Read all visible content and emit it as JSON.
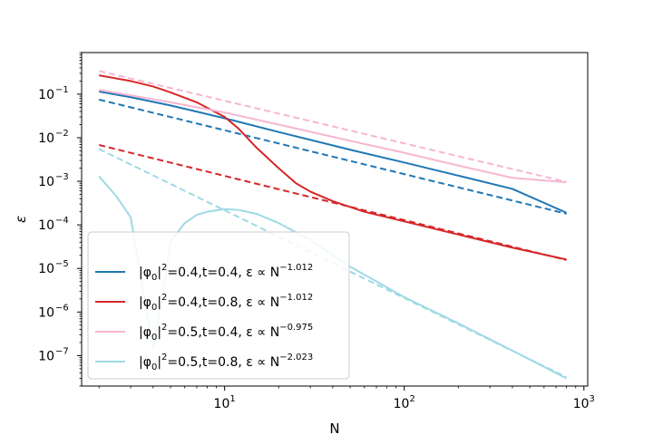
{
  "chart_data": {
    "type": "line",
    "title": "",
    "xlabel": "N",
    "ylabel": "ε",
    "xscale": "log",
    "yscale": "log",
    "xlim": [
      1.6,
      1050
    ],
    "ylim": [
      2e-08,
      0.9
    ],
    "grid": false,
    "legend_position": "lower-left",
    "x_ticks": [
      {
        "value": 10,
        "base": "10",
        "exp": "1"
      },
      {
        "value": 100,
        "base": "10",
        "exp": "2"
      },
      {
        "value": 1000,
        "base": "10",
        "exp": "3"
      }
    ],
    "y_ticks": [
      {
        "value": 1e-07,
        "base": "10",
        "exp": "−7"
      },
      {
        "value": 1e-06,
        "base": "10",
        "exp": "−6"
      },
      {
        "value": 1e-05,
        "base": "10",
        "exp": "−5"
      },
      {
        "value": 0.0001,
        "base": "10",
        "exp": "−4"
      },
      {
        "value": 0.001,
        "base": "10",
        "exp": "−3"
      },
      {
        "value": 0.01,
        "base": "10",
        "exp": "−2"
      },
      {
        "value": 0.1,
        "base": "10",
        "exp": "−1"
      }
    ],
    "series": [
      {
        "name": "|φ0|²=0.4,t=0.4, ε ∝ N^−1.012",
        "label_parts": {
          "a": "|φ",
          "sub": "0",
          "b": "|",
          "sup": "2",
          "c": "=0.4,t=0.4, ε ∝ N",
          "exp": "−1.012"
        },
        "color": "#1f77b4",
        "solid": [
          [
            2,
            0.115
          ],
          [
            3,
            0.085
          ],
          [
            5,
            0.055
          ],
          [
            10,
            0.028
          ],
          [
            20,
            0.0135
          ],
          [
            50,
            0.0053
          ],
          [
            100,
            0.0027
          ],
          [
            200,
            0.00135
          ],
          [
            400,
            0.00067
          ],
          [
            800,
            0.00019
          ]
        ],
        "fit": [
          [
            2,
            0.075
          ],
          [
            800,
            0.00018
          ]
        ]
      },
      {
        "name": "|φ0|²=0.4,t=0.8, ε ∝ N^−1.012",
        "label_parts": {
          "a": "|φ",
          "sub": "0",
          "b": "|",
          "sup": "2",
          "c": "=0.4,t=0.8, ε ∝ N",
          "exp": "−1.012"
        },
        "color": "#d62728",
        "solid": [
          [
            2,
            0.27
          ],
          [
            3,
            0.2
          ],
          [
            4,
            0.15
          ],
          [
            5,
            0.11
          ],
          [
            7,
            0.065
          ],
          [
            10,
            0.03
          ],
          [
            12,
            0.016
          ],
          [
            15,
            0.006
          ],
          [
            20,
            0.002
          ],
          [
            25,
            0.0009
          ],
          [
            30,
            0.00058
          ],
          [
            40,
            0.00035
          ],
          [
            60,
            0.0002
          ],
          [
            100,
            0.00012
          ],
          [
            200,
            6e-05
          ],
          [
            400,
            3e-05
          ],
          [
            800,
            1.6e-05
          ]
        ],
        "fit": [
          [
            2,
            0.0068
          ],
          [
            800,
            1.56e-05
          ]
        ]
      },
      {
        "name": "|φ0|²=0.5,t=0.4, ε ∝ N^−0.975",
        "label_parts": {
          "a": "|φ",
          "sub": "0",
          "b": "|",
          "sup": "2",
          "c": "=0.5,t=0.4, ε ∝ N",
          "exp": "−0.975"
        },
        "color": "#f7b6d2",
        "solid": [
          [
            2,
            0.125
          ],
          [
            5,
            0.065
          ],
          [
            10,
            0.038
          ],
          [
            20,
            0.02
          ],
          [
            50,
            0.0085
          ],
          [
            100,
            0.0045
          ],
          [
            200,
            0.0023
          ],
          [
            400,
            0.0012
          ],
          [
            800,
            0.00095
          ]
        ],
        "fit": [
          [
            2,
            0.34
          ],
          [
            800,
            0.00097
          ]
        ]
      },
      {
        "name": "|φ0|²=0.5,t=0.8, ε ∝ N^−2.023",
        "label_parts": {
          "a": "|φ",
          "sub": "0",
          "b": "|",
          "sup": "2",
          "c": "=0.5,t=0.8, ε ∝ N",
          "exp": "−2.023"
        },
        "color": "#9edae5",
        "solid": [
          [
            2,
            0.0013
          ],
          [
            2.5,
            0.00045
          ],
          [
            3,
            0.00015
          ],
          [
            3.5,
            3.5e-06
          ],
          [
            4,
            1.5e-07
          ],
          [
            4.5,
            2.1e-06
          ],
          [
            5,
            4.2e-05
          ],
          [
            6,
            0.00011
          ],
          [
            7,
            0.00017
          ],
          [
            8,
            0.0002
          ],
          [
            10,
            0.00023
          ],
          [
            12,
            0.00022
          ],
          [
            15,
            0.00018
          ],
          [
            20,
            0.00011
          ],
          [
            30,
            4.5e-05
          ],
          [
            50,
            1.1e-05
          ],
          [
            100,
            2.2e-06
          ],
          [
            200,
            5.5e-07
          ],
          [
            400,
            1.3e-07
          ],
          [
            800,
            3e-08
          ]
        ],
        "fit": [
          [
            2,
            0.0055
          ],
          [
            800,
            3.2e-08
          ]
        ]
      }
    ]
  }
}
